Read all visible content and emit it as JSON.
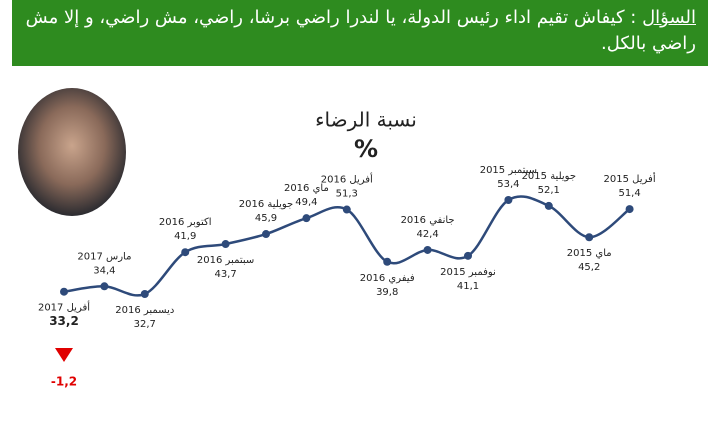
{
  "header": {
    "label": "السؤال",
    "text": ": كيفاش تقيم اداء  رئيس الدولة، يا لندرا راضي برشا، راضي، مش راضي، و إلا مش راضي بالكل."
  },
  "chart_data": {
    "type": "line",
    "title": "نسبة الرضاء",
    "subtitle": "%",
    "annotation": "-1,2",
    "categories": [
      "أفريل 2017",
      "مارس 2017",
      "ديسمبر 2016",
      "اكتوبر 2016",
      "سبتمبر 2016",
      "جويلية 2016",
      "ماي 2016",
      "أفريل 2016",
      "فيفري 2016",
      "جانفي 2016",
      "نوفمبر 2015",
      "سبتمبر 2015",
      "جويلية 2015",
      "ماي 2015",
      "أفريل 2015"
    ],
    "series": [
      {
        "name": "نسبة الرضاء",
        "color": "#2e4a7a",
        "values": [
          33.2,
          34.4,
          32.7,
          41.9,
          43.7,
          45.9,
          49.4,
          51.3,
          39.8,
          42.4,
          41.1,
          53.4,
          52.1,
          45.2,
          51.4
        ],
        "value_labels": [
          "33,2",
          "34,4",
          "32,7",
          "41,9",
          "43,7",
          "45,9",
          "49,4",
          "51,3",
          "39,8",
          "42,4",
          "41,1",
          "53,4",
          "52,1",
          "45,2",
          "51,4"
        ]
      }
    ]
  }
}
